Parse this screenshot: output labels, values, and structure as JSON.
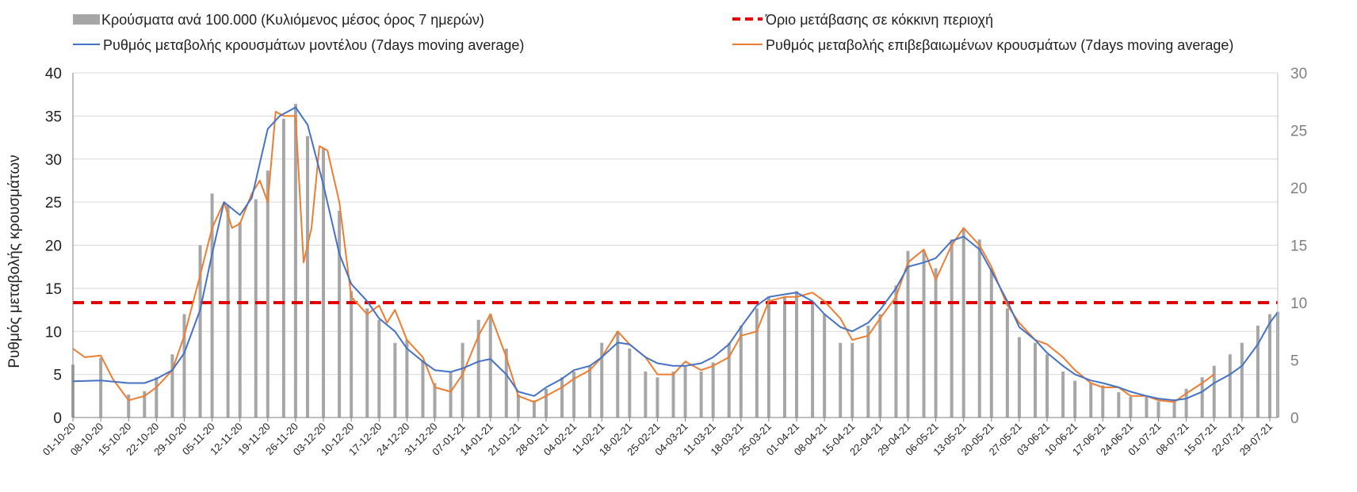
{
  "chart_data": {
    "type": "bar+line",
    "title": "",
    "ylabel": "Ρυθμός μεταβολής κρουσμάτων",
    "ylim_left": [
      0,
      40
    ],
    "ylim_right": [
      0,
      30
    ],
    "yticks_left": [
      0,
      5,
      10,
      15,
      20,
      25,
      30,
      35,
      40
    ],
    "yticks_right": [
      0,
      5,
      10,
      15,
      20,
      25,
      30
    ],
    "grid": true,
    "legend_position": "top",
    "x_start": "2020-10-01",
    "x_end": "2021-07-31",
    "xtick_labels": [
      "01-10-20",
      "08-10-20",
      "15-10-20",
      "22-10-20",
      "29-10-20",
      "05-11-20",
      "12-11-20",
      "19-11-20",
      "26-11-20",
      "03-12-20",
      "10-12-20",
      "17-12-20",
      "24-12-20",
      "31-12-20",
      "07-01-21",
      "14-01-21",
      "21-01-21",
      "28-01-21",
      "04-02-21",
      "11-02-21",
      "18-02-21",
      "25-02-21",
      "04-03-21",
      "11-03-21",
      "18-03-21",
      "25-03-21",
      "01-04-21",
      "08-04-21",
      "15-04-21",
      "22-04-21",
      "29-04-21",
      "06-05-21",
      "13-05-21",
      "20-05-21",
      "27-05-21",
      "03-06-21",
      "10-06-21",
      "17-06-21",
      "24-06-21",
      "01-07-21",
      "08-07-21",
      "15-07-21",
      "22-07-21",
      "29-07-21"
    ],
    "series": [
      {
        "name": "Κρούσματα ανά 100.000 (Κυλιόμενος μέσος όρος 7 ημερών)",
        "type": "bar",
        "axis": "right",
        "color": "#a6a6a6",
        "x": [
          "2020-10-01",
          "2020-10-08",
          "2020-10-15",
          "2020-10-19",
          "2020-10-22",
          "2020-10-26",
          "2020-10-29",
          "2020-11-02",
          "2020-11-05",
          "2020-11-09",
          "2020-11-12",
          "2020-11-16",
          "2020-11-19",
          "2020-11-23",
          "2020-11-26",
          "2020-11-29",
          "2020-12-03",
          "2020-12-07",
          "2020-12-10",
          "2020-12-14",
          "2020-12-17",
          "2020-12-21",
          "2020-12-24",
          "2020-12-28",
          "2020-12-31",
          "2021-01-04",
          "2021-01-07",
          "2021-01-11",
          "2021-01-14",
          "2021-01-18",
          "2021-01-21",
          "2021-01-25",
          "2021-01-28",
          "2021-02-01",
          "2021-02-04",
          "2021-02-08",
          "2021-02-11",
          "2021-02-15",
          "2021-02-18",
          "2021-02-22",
          "2021-02-25",
          "2021-03-01",
          "2021-03-04",
          "2021-03-08",
          "2021-03-11",
          "2021-03-15",
          "2021-03-18",
          "2021-03-22",
          "2021-03-25",
          "2021-03-29",
          "2021-04-01",
          "2021-04-05",
          "2021-04-08",
          "2021-04-12",
          "2021-04-15",
          "2021-04-19",
          "2021-04-22",
          "2021-04-26",
          "2021-04-29",
          "2021-05-03",
          "2021-05-06",
          "2021-05-10",
          "2021-05-13",
          "2021-05-17",
          "2021-05-20",
          "2021-05-24",
          "2021-05-27",
          "2021-05-31",
          "2021-06-03",
          "2021-06-07",
          "2021-06-10",
          "2021-06-14",
          "2021-06-17",
          "2021-06-21",
          "2021-06-24",
          "2021-06-28",
          "2021-07-01",
          "2021-07-05",
          "2021-07-08",
          "2021-07-12",
          "2021-07-15",
          "2021-07-19",
          "2021-07-22",
          "2021-07-26",
          "2021-07-29",
          "2021-07-31"
        ],
        "values": [
          4.6,
          5.2,
          2.0,
          2.3,
          3.5,
          5.5,
          9.0,
          15.0,
          19.5,
          18.5,
          17.0,
          19.0,
          21.5,
          26.0,
          27.3,
          24.5,
          23.5,
          18.0,
          11.0,
          9.5,
          8.5,
          6.5,
          6.8,
          5.0,
          3.0,
          4.0,
          6.5,
          8.5,
          9.0,
          6.0,
          2.0,
          1.5,
          2.5,
          3.5,
          4.0,
          4.5,
          6.5,
          7.5,
          6.0,
          4.0,
          3.5,
          4.0,
          4.5,
          4.0,
          4.8,
          6.5,
          8.0,
          9.5,
          10.5,
          10.5,
          11.0,
          10.0,
          9.0,
          6.5,
          6.5,
          8.0,
          9.0,
          11.5,
          14.5,
          14.5,
          13.0,
          15.5,
          16.5,
          15.5,
          13.0,
          9.5,
          7.0,
          6.5,
          5.5,
          4.0,
          3.2,
          3.0,
          2.8,
          2.2,
          1.8,
          1.8,
          1.4,
          1.5,
          2.5,
          3.5,
          4.5,
          5.5,
          6.5,
          8.0,
          9.0,
          9.2
        ]
      },
      {
        "name": "Όριο μετάβασης σε κόκκινη περιοχή",
        "type": "line",
        "axis": "right",
        "style": "dashed",
        "color": "#e00000",
        "value": 10
      },
      {
        "name": "Ρυθμός μεταβολής κρουσμάτων μοντέλου (7days moving average)",
        "type": "line",
        "axis": "left",
        "color": "#4472c4",
        "x": [
          "2020-10-01",
          "2020-10-08",
          "2020-10-15",
          "2020-10-19",
          "2020-10-22",
          "2020-10-26",
          "2020-10-29",
          "2020-11-02",
          "2020-11-05",
          "2020-11-08",
          "2020-11-12",
          "2020-11-15",
          "2020-11-19",
          "2020-11-22",
          "2020-11-26",
          "2020-11-29",
          "2020-12-03",
          "2020-12-07",
          "2020-12-10",
          "2020-12-14",
          "2020-12-17",
          "2020-12-21",
          "2020-12-24",
          "2020-12-28",
          "2020-12-31",
          "2021-01-04",
          "2021-01-07",
          "2021-01-11",
          "2021-01-14",
          "2021-01-18",
          "2021-01-21",
          "2021-01-25",
          "2021-01-28",
          "2021-02-01",
          "2021-02-04",
          "2021-02-08",
          "2021-02-11",
          "2021-02-15",
          "2021-02-18",
          "2021-02-22",
          "2021-02-25",
          "2021-03-01",
          "2021-03-04",
          "2021-03-08",
          "2021-03-11",
          "2021-03-15",
          "2021-03-18",
          "2021-03-22",
          "2021-03-25",
          "2021-03-29",
          "2021-04-01",
          "2021-04-05",
          "2021-04-08",
          "2021-04-12",
          "2021-04-15",
          "2021-04-19",
          "2021-04-22",
          "2021-04-26",
          "2021-04-29",
          "2021-05-03",
          "2021-05-06",
          "2021-05-10",
          "2021-05-13",
          "2021-05-17",
          "2021-05-20",
          "2021-05-24",
          "2021-05-27",
          "2021-05-31",
          "2021-06-03",
          "2021-06-07",
          "2021-06-10",
          "2021-06-14",
          "2021-06-17",
          "2021-06-21",
          "2021-06-24",
          "2021-06-28",
          "2021-07-01",
          "2021-07-05",
          "2021-07-08",
          "2021-07-12",
          "2021-07-15",
          "2021-07-19",
          "2021-07-22",
          "2021-07-26",
          "2021-07-29",
          "2021-07-31"
        ],
        "values": [
          4.2,
          4.3,
          4.0,
          4.0,
          4.5,
          5.5,
          7.5,
          12.5,
          19.0,
          25.0,
          23.5,
          25.5,
          33.5,
          35.0,
          36.0,
          34.0,
          27.0,
          19.0,
          15.5,
          13.5,
          11.5,
          10.0,
          8.0,
          6.5,
          5.5,
          5.3,
          5.7,
          6.5,
          6.8,
          5.0,
          3.0,
          2.5,
          3.5,
          4.5,
          5.5,
          6.0,
          7.0,
          8.7,
          8.5,
          7.0,
          6.3,
          6.0,
          6.0,
          6.3,
          7.0,
          8.5,
          10.5,
          13.0,
          14.0,
          14.3,
          14.5,
          13.5,
          12.0,
          10.5,
          10.0,
          11.0,
          12.5,
          15.0,
          17.5,
          18.0,
          18.5,
          20.5,
          21.0,
          19.5,
          17.0,
          13.5,
          10.5,
          9.0,
          7.5,
          6.0,
          5.0,
          4.3,
          4.0,
          3.5,
          3.0,
          2.5,
          2.2,
          2.0,
          2.2,
          3.0,
          4.0,
          5.0,
          6.0,
          8.5,
          11.0,
          12.2
        ]
      },
      {
        "name": "Ρυθμός μεταβολής επιβεβαιωμένων κρουσμάτων (7days moving average)",
        "type": "line",
        "axis": "left",
        "color": "#ed7d31",
        "x": [
          "2020-10-01",
          "2020-10-04",
          "2020-10-08",
          "2020-10-11",
          "2020-10-15",
          "2020-10-19",
          "2020-10-22",
          "2020-10-26",
          "2020-10-29",
          "2020-11-02",
          "2020-11-05",
          "2020-11-08",
          "2020-11-10",
          "2020-11-12",
          "2020-11-15",
          "2020-11-17",
          "2020-11-19",
          "2020-11-21",
          "2020-11-23",
          "2020-11-26",
          "2020-11-28",
          "2020-11-30",
          "2020-12-02",
          "2020-12-04",
          "2020-12-07",
          "2020-12-10",
          "2020-12-14",
          "2020-12-17",
          "2020-12-19",
          "2020-12-21",
          "2020-12-24",
          "2020-12-28",
          "2020-12-31",
          "2021-01-04",
          "2021-01-07",
          "2021-01-11",
          "2021-01-14",
          "2021-01-18",
          "2021-01-21",
          "2021-01-25",
          "2021-01-28",
          "2021-02-01",
          "2021-02-04",
          "2021-02-08",
          "2021-02-11",
          "2021-02-15",
          "2021-02-18",
          "2021-02-22",
          "2021-02-25",
          "2021-03-01",
          "2021-03-04",
          "2021-03-08",
          "2021-03-11",
          "2021-03-15",
          "2021-03-18",
          "2021-03-22",
          "2021-03-25",
          "2021-03-29",
          "2021-04-01",
          "2021-04-05",
          "2021-04-08",
          "2021-04-12",
          "2021-04-15",
          "2021-04-19",
          "2021-04-22",
          "2021-04-26",
          "2021-04-29",
          "2021-05-03",
          "2021-05-06",
          "2021-05-10",
          "2021-05-13",
          "2021-05-17",
          "2021-05-20",
          "2021-05-24",
          "2021-05-27",
          "2021-05-31",
          "2021-06-03",
          "2021-06-07",
          "2021-06-10",
          "2021-06-14",
          "2021-06-17",
          "2021-06-21",
          "2021-06-24",
          "2021-06-28",
          "2021-07-01",
          "2021-07-05",
          "2021-07-08",
          "2021-07-12",
          "2021-07-15"
        ],
        "values": [
          8.0,
          7.0,
          7.2,
          4.5,
          2.0,
          2.5,
          3.5,
          5.5,
          9.5,
          16.5,
          22.0,
          25.0,
          22.0,
          22.5,
          26.0,
          27.5,
          25.0,
          35.5,
          35.0,
          35.0,
          18.0,
          22.0,
          31.5,
          31.0,
          25.0,
          14.0,
          12.0,
          13.0,
          11.0,
          12.5,
          9.0,
          7.0,
          3.5,
          3.0,
          5.0,
          9.5,
          12.0,
          7.0,
          2.5,
          1.8,
          2.5,
          3.5,
          4.5,
          5.5,
          7.0,
          10.0,
          8.5,
          7.0,
          5.0,
          5.0,
          6.5,
          5.5,
          6.0,
          7.0,
          9.5,
          10.0,
          13.5,
          14.0,
          14.0,
          14.5,
          13.5,
          11.5,
          9.0,
          9.5,
          11.5,
          14.0,
          18.0,
          19.5,
          16.0,
          20.0,
          22.0,
          20.0,
          17.5,
          13.0,
          11.0,
          9.0,
          8.5,
          7.0,
          5.5,
          4.0,
          3.5,
          3.5,
          2.5,
          2.5,
          2.0,
          1.8,
          2.8,
          4.0,
          5.0
        ]
      }
    ]
  },
  "legend": {
    "items": [
      {
        "label": "Κρούσματα ανά 100.000 (Κυλιόμενος μέσος όρος 7 ημερών)",
        "symbol": "bar",
        "color": "#a6a6a6"
      },
      {
        "label": "Όριο μετάβασης σε κόκκινη περιοχή",
        "symbol": "dash",
        "color": "#e00000"
      },
      {
        "label": "Ρυθμός μεταβολής κρουσμάτων μοντέλου (7days moving average)",
        "symbol": "line",
        "color": "#4472c4"
      },
      {
        "label": "Ρυθμός μεταβολής επιβεβαιωμένων κρουσμάτων (7days moving average)",
        "symbol": "line",
        "color": "#ed7d31"
      }
    ]
  }
}
